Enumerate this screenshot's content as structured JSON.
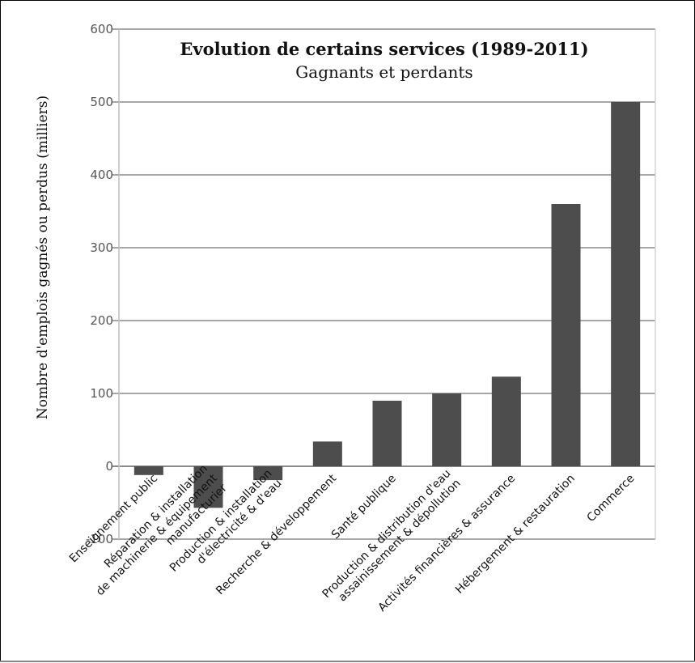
{
  "chart_data": {
    "type": "bar",
    "title": "Evolution de certains services (1989-2011)",
    "subtitle": "Gagnants et perdants",
    "xlabel": "",
    "ylabel": "Nombre d'emplois gagnés ou perdus (milliers)",
    "ylim": [
      -100,
      600
    ],
    "yticks": [
      600,
      500,
      400,
      300,
      200,
      100,
      0,
      -100
    ],
    "grid": true,
    "bar_color": "#4d4d4d",
    "categories": [
      [
        "Enseignement public"
      ],
      [
        "Réparation & installation",
        "de machinerie & équipement",
        "manufacturier"
      ],
      [
        "Production & installation",
        "d'électricité & d'eau"
      ],
      [
        "Recherche & développement"
      ],
      [
        "Santé publique"
      ],
      [
        "Production & distribution d'eau",
        "assainissement & dépollution"
      ],
      [
        "Activités financières & assurance"
      ],
      [
        "Hébergement & restauration"
      ],
      [
        "Commerce"
      ]
    ],
    "values": [
      -12,
      -57,
      -19,
      34,
      90,
      100,
      123,
      360,
      500
    ]
  }
}
